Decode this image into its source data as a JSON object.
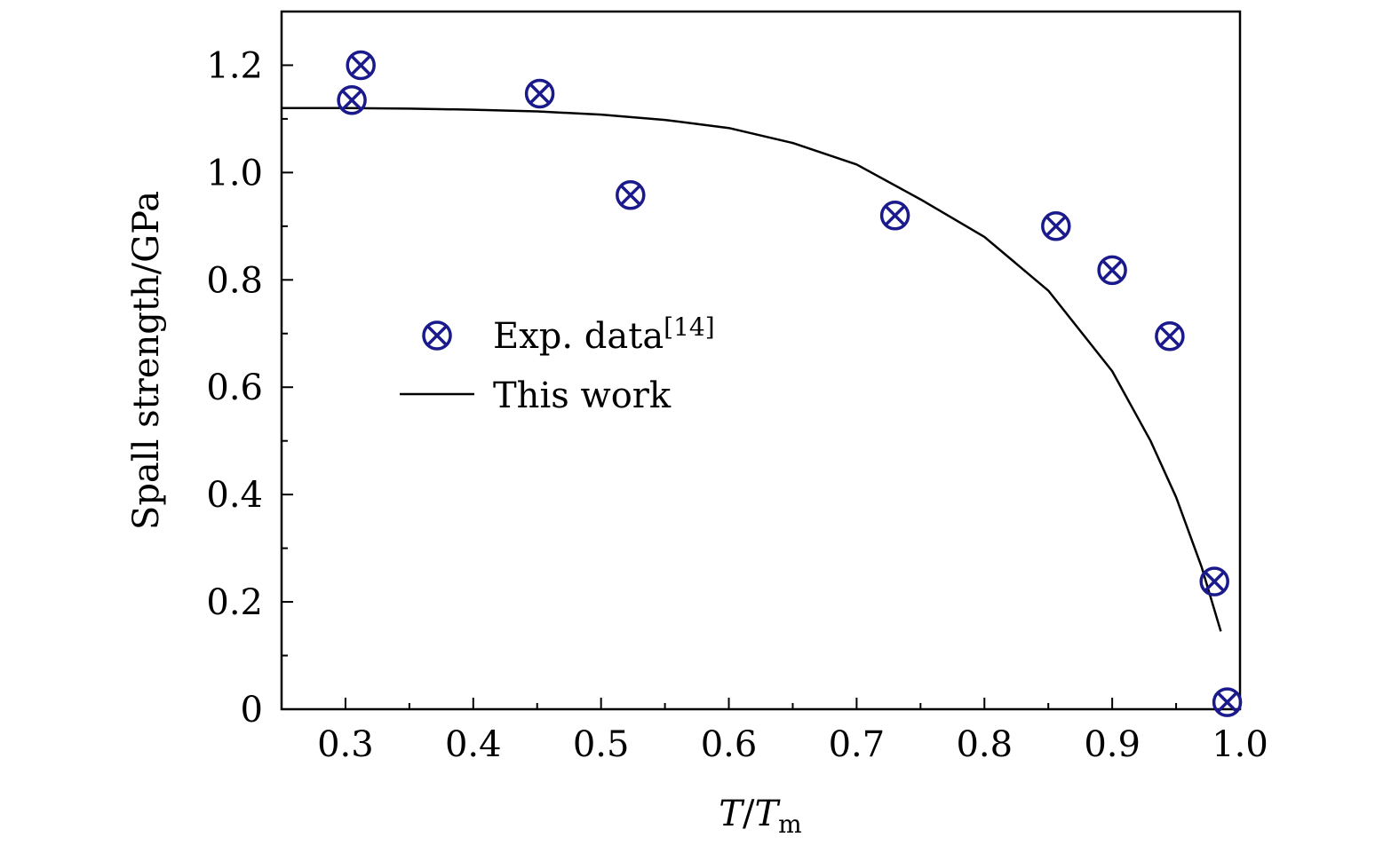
{
  "chart_data": {
    "type": "scatter",
    "title": "",
    "xlabel_main": "T",
    "xlabel_sep": "/",
    "xlabel_denom": "T",
    "xlabel_sub": "m",
    "ylabel": "Spall strength/GPa",
    "xlim": [
      0.25,
      1.0
    ],
    "ylim": [
      0,
      1.3
    ],
    "xticks": [
      0.3,
      0.4,
      0.5,
      0.6,
      0.7,
      0.8,
      0.9,
      1.0
    ],
    "xtick_labels": [
      "0.3",
      "0.4",
      "0.5",
      "0.6",
      "0.7",
      "0.8",
      "0.9",
      "1.0"
    ],
    "yticks": [
      0,
      0.2,
      0.4,
      0.6,
      0.8,
      1.0,
      1.2
    ],
    "ytick_labels": [
      "0",
      "0.2",
      "0.4",
      "0.6",
      "0.8",
      "1.0",
      "1.2"
    ],
    "grid": false,
    "legend_position": "center-left",
    "marker_color": "#1a1a8c",
    "line_color": "#000000",
    "series": [
      {
        "name": "Exp. data",
        "name_sup": "[14]",
        "kind": "scatter",
        "marker": "circle-x",
        "x": [
          0.305,
          0.312,
          0.452,
          0.523,
          0.73,
          0.856,
          0.9,
          0.945,
          0.98,
          0.99
        ],
        "y": [
          1.135,
          1.2,
          1.147,
          0.958,
          0.92,
          0.9,
          0.818,
          0.695,
          0.238,
          0.013
        ]
      },
      {
        "name": "This work",
        "kind": "line",
        "x": [
          0.25,
          0.3,
          0.35,
          0.4,
          0.45,
          0.5,
          0.55,
          0.6,
          0.65,
          0.7,
          0.75,
          0.8,
          0.85,
          0.9,
          0.93,
          0.95,
          0.97,
          0.985
        ],
        "y": [
          1.12,
          1.12,
          1.119,
          1.117,
          1.114,
          1.108,
          1.098,
          1.083,
          1.055,
          1.015,
          0.95,
          0.88,
          0.78,
          0.63,
          0.5,
          0.395,
          0.265,
          0.145
        ]
      }
    ]
  }
}
